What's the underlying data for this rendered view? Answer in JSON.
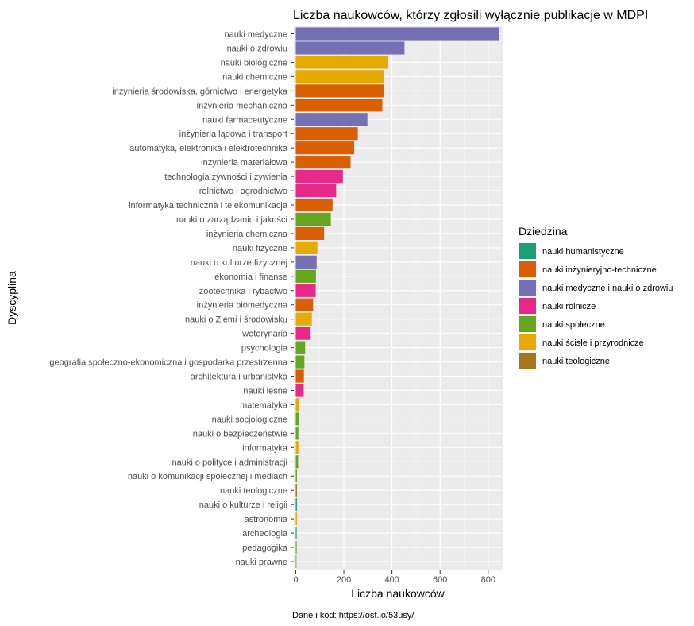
{
  "chart_data": {
    "type": "bar",
    "orientation": "horizontal",
    "title": "Liczba naukowców, którzy zgłosili wyłącznie publikacje w MDPI",
    "xlabel": "Liczba naukowców",
    "ylabel": "Dyscyplina",
    "xlim": [
      -8,
      860
    ],
    "xticks": [
      0,
      200,
      400,
      600,
      800
    ],
    "caption": "Dane i kod: https://osf.io/53usy/",
    "legend": {
      "title": "Dziedzina",
      "position": "right",
      "items": [
        {
          "label": "nauki humanistyczne",
          "color": "#1b9e77"
        },
        {
          "label": "nauki inżynieryjno-techniczne",
          "color": "#d95f02"
        },
        {
          "label": "nauki medyczne i nauki o zdrowiu",
          "color": "#7570b3"
        },
        {
          "label": "nauki rolnicze",
          "color": "#e7298a"
        },
        {
          "label": "nauki społeczne",
          "color": "#66a61e"
        },
        {
          "label": "nauki ścisłe i przyrodnicze",
          "color": "#e6ab02"
        },
        {
          "label": "nauki teologiczne",
          "color": "#a6761d"
        }
      ]
    },
    "bars": [
      {
        "label": "nauki medyczne",
        "value": 845,
        "group": 2
      },
      {
        "label": "nauki o zdrowiu",
        "value": 452,
        "group": 2
      },
      {
        "label": "nauki biologiczne",
        "value": 385,
        "group": 5
      },
      {
        "label": "nauki chemiczne",
        "value": 367,
        "group": 5
      },
      {
        "label": "inżynieria środowiska, górnictwo i energetyka",
        "value": 365,
        "group": 1
      },
      {
        "label": "inżynieria mechaniczna",
        "value": 360,
        "group": 1
      },
      {
        "label": "nauki farmaceutyczne",
        "value": 298,
        "group": 2
      },
      {
        "label": "inżynieria lądowa i transport",
        "value": 258,
        "group": 1
      },
      {
        "label": "automatyka, elektronika i elektrotechnika",
        "value": 243,
        "group": 1
      },
      {
        "label": "inżynieria materiałowa",
        "value": 228,
        "group": 1
      },
      {
        "label": "technologia żywności i żywienia",
        "value": 196,
        "group": 3
      },
      {
        "label": "rolnictwo i ogrodnictwo",
        "value": 168,
        "group": 3
      },
      {
        "label": "informatyka techniczna i telekomunikacja",
        "value": 153,
        "group": 1
      },
      {
        "label": "nauki o zarządzaniu i jakości",
        "value": 146,
        "group": 4
      },
      {
        "label": "inżynieria chemiczna",
        "value": 118,
        "group": 1
      },
      {
        "label": "nauki fizyczne",
        "value": 90,
        "group": 5
      },
      {
        "label": "nauki o kulturze fizycznej",
        "value": 87,
        "group": 2
      },
      {
        "label": "ekonomia i finanse",
        "value": 84,
        "group": 4
      },
      {
        "label": "zootechnika i rybactwo",
        "value": 83,
        "group": 3
      },
      {
        "label": "inżynieria biomedyczna",
        "value": 72,
        "group": 1
      },
      {
        "label": "nauki o Ziemi i środowisku",
        "value": 67,
        "group": 5
      },
      {
        "label": "weterynaria",
        "value": 62,
        "group": 3
      },
      {
        "label": "psychologia",
        "value": 39,
        "group": 4
      },
      {
        "label": "geografia społeczno-ekonomiczna i gospodarka przestrzenna",
        "value": 36,
        "group": 4
      },
      {
        "label": "architektura i urbanistyka",
        "value": 34,
        "group": 1
      },
      {
        "label": "nauki leśne",
        "value": 33,
        "group": 3
      },
      {
        "label": "matematyka",
        "value": 15,
        "group": 5
      },
      {
        "label": "nauki socjologiczne",
        "value": 14,
        "group": 4
      },
      {
        "label": "nauki o bezpieczeństwie",
        "value": 11,
        "group": 4
      },
      {
        "label": "informatyka",
        "value": 11,
        "group": 5
      },
      {
        "label": "nauki o polityce i administracji",
        "value": 10,
        "group": 4
      },
      {
        "label": "nauki o komunikacji społecznej i mediach",
        "value": 5,
        "group": 4
      },
      {
        "label": "nauki teologiczne",
        "value": 5,
        "group": 6
      },
      {
        "label": "nauki o kulturze i religii",
        "value": 5,
        "group": 0
      },
      {
        "label": "astronomia",
        "value": 5,
        "group": 5
      },
      {
        "label": "archeologia",
        "value": 4,
        "group": 0
      },
      {
        "label": "pedagogika",
        "value": 4,
        "group": 4
      },
      {
        "label": "nauki prawne",
        "value": 3,
        "group": 4
      }
    ]
  }
}
